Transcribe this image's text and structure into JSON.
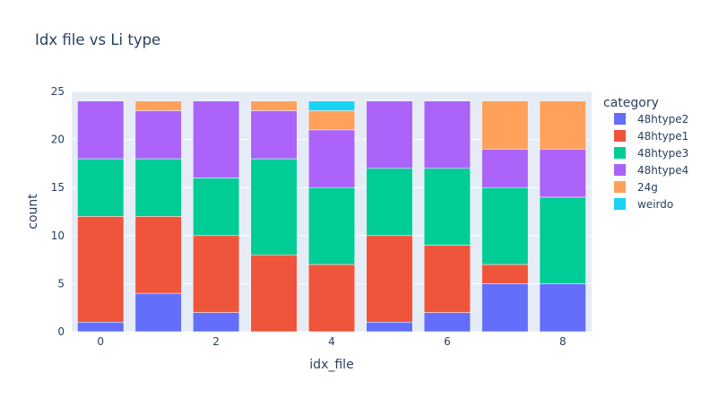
{
  "chart_data": {
    "type": "bar",
    "barmode": "stack",
    "title": "Idx file vs Li type",
    "xlabel": "idx_file",
    "ylabel": "count",
    "x": [
      0,
      1,
      2,
      3,
      4,
      5,
      6,
      7,
      8
    ],
    "x_ticks": [
      "0",
      "2",
      "4",
      "6",
      "8"
    ],
    "y_ticks": [
      "0",
      "5",
      "10",
      "15",
      "20",
      "25"
    ],
    "ylim": [
      0,
      25
    ],
    "grid": true,
    "legend_title": "category",
    "legend_position": "right",
    "series": [
      {
        "name": "48htype2",
        "color": "#636efa",
        "values": [
          1,
          4,
          2,
          0,
          0,
          1,
          2,
          5,
          5
        ]
      },
      {
        "name": "48htype1",
        "color": "#ef553b",
        "values": [
          11,
          8,
          8,
          8,
          7,
          9,
          7,
          2,
          0
        ]
      },
      {
        "name": "48htype3",
        "color": "#00cc96",
        "values": [
          6,
          6,
          6,
          10,
          8,
          7,
          8,
          8,
          9
        ]
      },
      {
        "name": "48htype4",
        "color": "#ab63fa",
        "values": [
          6,
          5,
          8,
          5,
          6,
          7,
          7,
          4,
          5
        ]
      },
      {
        "name": "24g",
        "color": "#ffa15a",
        "values": [
          0,
          1,
          0,
          1,
          2,
          0,
          0,
          5,
          5
        ]
      },
      {
        "name": "weirdo",
        "color": "#19d3f3",
        "values": [
          0,
          0,
          0,
          0,
          1,
          0,
          0,
          0,
          0
        ]
      }
    ]
  }
}
